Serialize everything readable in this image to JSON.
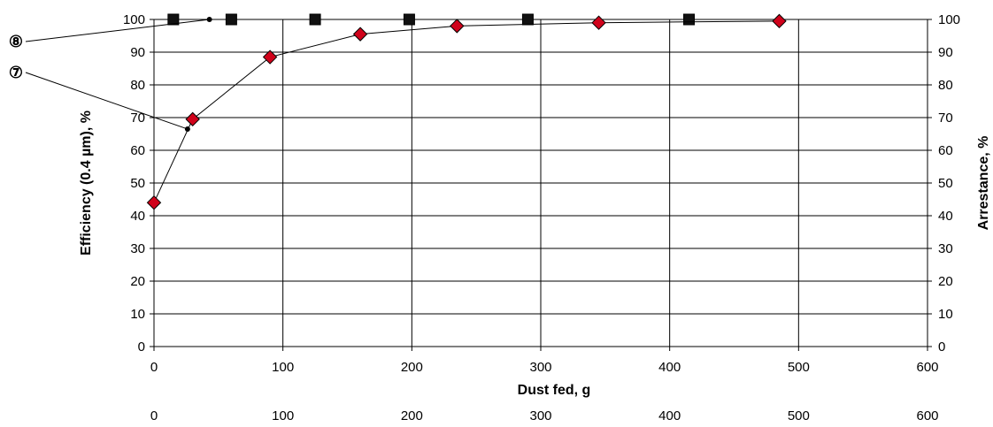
{
  "chart_data": {
    "type": "scatter",
    "title": "",
    "xlabel": "Dust fed, g",
    "ylabel_left": "Efficiency (0.4 µm), %",
    "ylabel_right": "Arrestance, %",
    "xlim": [
      0,
      600
    ],
    "ylim_left": [
      0,
      100
    ],
    "ylim_right": [
      0,
      100
    ],
    "x_ticks": [
      "0",
      "100",
      "200",
      "300",
      "400",
      "500",
      "600"
    ],
    "x_ticks_secondary": [
      "0",
      "100",
      "200",
      "300",
      "400",
      "500",
      "600"
    ],
    "y_ticks_left": [
      "0",
      "10",
      "20",
      "30",
      "40",
      "50",
      "60",
      "70",
      "80",
      "90",
      "100"
    ],
    "y_ticks_right": [
      "0",
      "10",
      "20",
      "30",
      "40",
      "50",
      "60",
      "70",
      "80",
      "90",
      "100"
    ],
    "grid": true,
    "legend": "none",
    "series": [
      {
        "axis": "right",
        "marker": "square",
        "color": "#111111",
        "connected": true,
        "x": [
          15,
          60,
          125,
          198,
          290,
          415
        ],
        "y": [
          100,
          100,
          100,
          100,
          100,
          100
        ]
      },
      {
        "axis": "left",
        "marker": "diamond",
        "color": "#d0021b",
        "connected": true,
        "x": [
          0,
          30,
          90,
          160,
          235,
          345,
          485
        ],
        "y": [
          44,
          69.5,
          88.5,
          95.5,
          98,
          99,
          99.5
        ]
      }
    ],
    "annotations": [
      {
        "label": "⑧",
        "target_x": 43,
        "target_y": 100
      },
      {
        "label": "⑦",
        "target_x": 26,
        "target_y": 66.5
      }
    ]
  }
}
